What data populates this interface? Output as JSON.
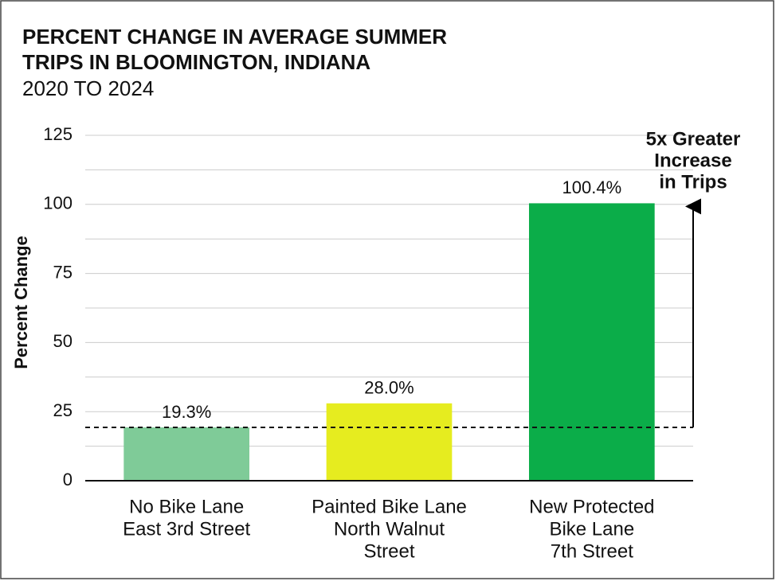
{
  "chart_data": {
    "type": "bar",
    "title": [
      "PERCENT CHANGE IN AVERAGE SUMMER",
      "TRIPS IN BLOOMINGTON, INDIANA"
    ],
    "subtitle": "2020 TO 2024",
    "y_label": "Percent Change",
    "categories": [
      [
        "No Bike Lane",
        "East 3rd Street"
      ],
      [
        "Painted Bike Lane",
        "North Walnut",
        "Street"
      ],
      [
        "New Protected",
        "Bike Lane",
        "7th Street"
      ]
    ],
    "values": [
      19.3,
      28.0,
      100.4
    ],
    "value_labels": [
      "19.3%",
      "28.0%",
      "100.4%"
    ],
    "colors": [
      "#7fcb98",
      "#e6ec1f",
      "#0bad49"
    ],
    "ylim": [
      0,
      125
    ],
    "yticks": [
      0,
      25,
      50,
      75,
      100,
      125
    ],
    "minor_yticks": [
      12.5,
      37.5,
      62.5,
      87.5,
      112.5
    ],
    "grid": true,
    "reference_line": 19.3,
    "annotation": [
      "5x Greater",
      "Increase",
      "in Trips"
    ]
  }
}
